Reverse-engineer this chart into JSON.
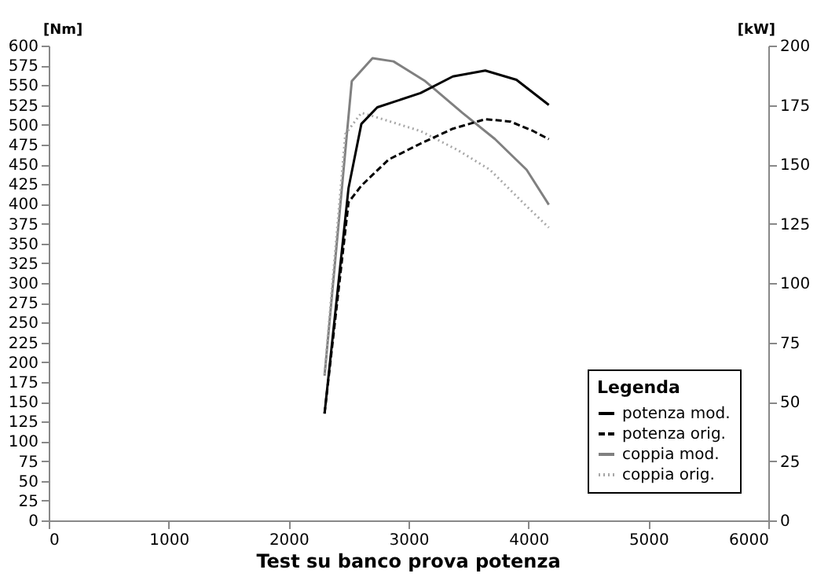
{
  "chart_data": {
    "type": "line",
    "title": "Test su banco prova potenza",
    "ylabel": "[Nm]",
    "y2label": "[kW]",
    "legend_title": "Legenda",
    "legend": "bottom right",
    "grid": false,
    "marker": "none",
    "xlim": [
      0,
      6000
    ],
    "xticks": [
      0,
      1000,
      2000,
      3000,
      4000,
      5000,
      6000
    ],
    "ylim": [
      0,
      600
    ],
    "yticks": [
      0,
      25,
      50,
      75,
      100,
      125,
      150,
      175,
      200,
      225,
      250,
      275,
      300,
      325,
      350,
      375,
      400,
      425,
      450,
      475,
      500,
      525,
      550,
      575,
      600
    ],
    "y2lim": [
      0,
      200
    ],
    "y2ticks": [
      0,
      25,
      50,
      75,
      100,
      125,
      150,
      175,
      200
    ],
    "series": [
      {
        "name": "potenza mod.",
        "color": "#000000",
        "axis": "y2",
        "line_style": "solid",
        "x": [
          2300,
          2500,
          2607,
          2740,
          3100,
          3370,
          3640,
          3900,
          4170
        ],
        "values": [
          45,
          140,
          167,
          174,
          180,
          187,
          189.5,
          185.6,
          175
        ]
      },
      {
        "name": "potenza orig.",
        "color": "#000000",
        "axis": "y2",
        "line_style": "dashed",
        "x": [
          2300,
          2500,
          2607,
          2834,
          3100,
          3370,
          3640,
          3850,
          4040,
          4170
        ],
        "values": [
          45,
          134,
          141,
          152,
          158.7,
          165,
          169,
          168,
          164,
          160.6
        ]
      },
      {
        "name": "coppia mod.",
        "color": "#808080",
        "axis": "y",
        "line_style": "solid",
        "x": [
          2300,
          2527,
          2700,
          2875,
          3140,
          3450,
          3720,
          3985,
          4170
        ],
        "values": [
          183,
          555,
          584,
          580,
          555,
          515,
          482,
          443,
          399
        ]
      },
      {
        "name": "coppia orig.",
        "color": "#a8a8a8",
        "axis": "y",
        "line_style": "dotted",
        "x": [
          2300,
          2473,
          2607,
          2700,
          3100,
          3410,
          3680,
          3985,
          4170
        ],
        "values": [
          185,
          488,
          515,
          511,
          492,
          468,
          443,
          397,
          370
        ]
      }
    ]
  }
}
